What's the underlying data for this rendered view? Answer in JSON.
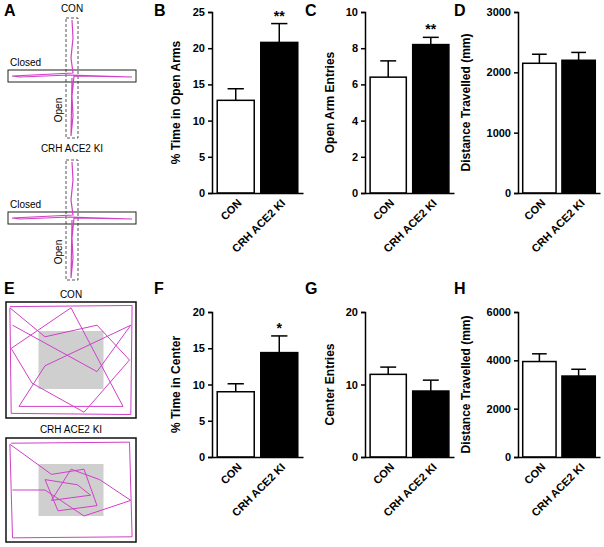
{
  "chart_data": [
    {
      "type": "bar",
      "panel": "B",
      "y_label": "% Time in Open Arms",
      "categories": [
        "CON",
        "CRH ACE2 KI"
      ],
      "values": [
        12.8,
        20.8
      ],
      "errors": [
        1.6,
        2.6
      ],
      "colors": [
        "#ffffff",
        "#000000"
      ],
      "ylim": [
        0,
        25
      ],
      "yticks": [
        0,
        5,
        10,
        15,
        20,
        25
      ],
      "annotations": [
        {
          "category": "CRH ACE2 KI",
          "text": "**"
        }
      ]
    },
    {
      "type": "bar",
      "panel": "C",
      "y_label": "Open Arm Entries",
      "categories": [
        "CON",
        "CRH ACE2 KI"
      ],
      "values": [
        6.4,
        8.2
      ],
      "errors": [
        0.9,
        0.4
      ],
      "colors": [
        "#ffffff",
        "#000000"
      ],
      "ylim": [
        0,
        10
      ],
      "yticks": [
        0,
        2,
        4,
        6,
        8,
        10
      ],
      "annotations": [
        {
          "category": "CRH ACE2 KI",
          "text": "**"
        }
      ]
    },
    {
      "type": "bar",
      "panel": "D",
      "y_label": "Distance Travelled (mm)",
      "categories": [
        "CON",
        "CRH ACE2 KI"
      ],
      "values": [
        2150,
        2200
      ],
      "errors": [
        150,
        130
      ],
      "colors": [
        "#ffffff",
        "#000000"
      ],
      "ylim": [
        0,
        3000
      ],
      "yticks": [
        0,
        1000,
        2000,
        3000
      ]
    },
    {
      "type": "bar",
      "panel": "F",
      "y_label": "% Time in Center",
      "categories": [
        "CON",
        "CRH ACE2 KI"
      ],
      "values": [
        9.0,
        14.4
      ],
      "errors": [
        1.1,
        2.3
      ],
      "colors": [
        "#ffffff",
        "#000000"
      ],
      "ylim": [
        0,
        20
      ],
      "yticks": [
        0,
        5,
        10,
        15,
        20
      ],
      "annotations": [
        {
          "category": "CRH ACE2 KI",
          "text": "*"
        }
      ]
    },
    {
      "type": "bar",
      "panel": "G",
      "y_label": "Center Entries",
      "categories": [
        "CON",
        "CRH ACE2 KI"
      ],
      "values": [
        11.4,
        9.1
      ],
      "errors": [
        1.0,
        1.5
      ],
      "colors": [
        "#ffffff",
        "#000000"
      ],
      "ylim": [
        0,
        20
      ],
      "yticks": [
        0,
        10,
        20
      ]
    },
    {
      "type": "bar",
      "panel": "H",
      "y_label": "Distance Travelled (mm)",
      "categories": [
        "CON",
        "CRH ACE2 KI"
      ],
      "values": [
        3950,
        3350
      ],
      "errors": [
        320,
        280
      ],
      "colors": [
        "#ffffff",
        "#000000"
      ],
      "ylim": [
        0,
        6000
      ],
      "yticks": [
        0,
        2000,
        4000,
        6000
      ]
    }
  ],
  "panels": [
    {
      "label": "A",
      "tracks": [
        {
          "title": "CON",
          "closed_label": "Closed",
          "open_label": "Open"
        },
        {
          "title": "CRH ACE2 KI",
          "closed_label": "Closed",
          "open_label": "Open"
        }
      ]
    },
    {
      "label": "E",
      "tracks": [
        {
          "title": "CON"
        },
        {
          "title": "CRH ACE2 KI"
        }
      ]
    }
  ]
}
